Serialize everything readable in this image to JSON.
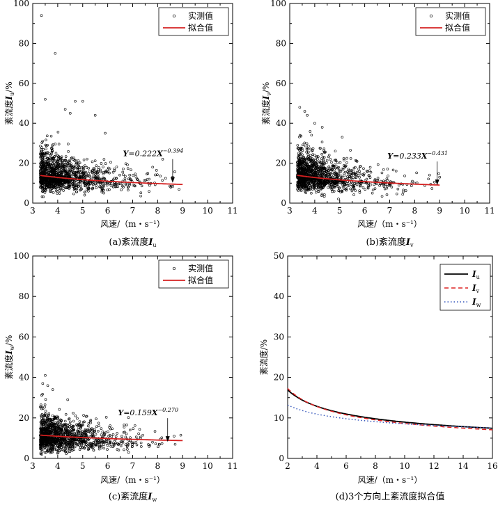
{
  "chart_data": [
    {
      "id": "a",
      "type": "scatter",
      "caption": "(a)紊流度I",
      "caption_sub": "u",
      "ylabel": "紊流度I",
      "ylabel_sub": "u",
      "ylabel_unit": "/%",
      "xlabel": "风速/（m・s⁻¹）",
      "xlim": [
        3,
        11
      ],
      "ylim": [
        0,
        100
      ],
      "xticks": [
        3,
        4,
        5,
        6,
        7,
        8,
        9,
        10,
        11
      ],
      "yticks": [
        0,
        20,
        40,
        60,
        80,
        100
      ],
      "legend": {
        "measured": "实测值",
        "fitted": "拟合值",
        "position": "top-right"
      },
      "fit": {
        "a": 0.222,
        "b": -0.394,
        "scale": 100,
        "x_range": [
          3.3,
          9.0
        ]
      },
      "equation": {
        "lhs": "Y",
        "mid": "=0.222",
        "var": "X",
        "exp": "−0.394"
      },
      "annotation_at": [
        8.6,
        10.2
      ],
      "scatter": {
        "count": 1300,
        "x_min": 3.3,
        "x_mode_decay": 0.95,
        "x_max": 9.0,
        "y_center": 14,
        "y_spread": 6.5,
        "seed": 11,
        "outliers": [
          [
            3.35,
            94
          ],
          [
            3.9,
            75
          ],
          [
            3.5,
            52
          ],
          [
            4.7,
            51
          ],
          [
            5.0,
            51
          ],
          [
            4.3,
            47
          ],
          [
            4.5,
            45
          ],
          [
            5.5,
            44
          ],
          [
            5.9,
            35
          ],
          [
            7.8,
            18
          ],
          [
            8.2,
            22
          ],
          [
            8.6,
            13
          ]
        ]
      }
    },
    {
      "id": "b",
      "type": "scatter",
      "caption": "(b)紊流度I",
      "caption_sub": "v",
      "ylabel": "紊流度I",
      "ylabel_sub": "v",
      "ylabel_unit": "/%",
      "xlabel": "风速/（m・s⁻¹）",
      "xlim": [
        3,
        11
      ],
      "ylim": [
        0,
        100
      ],
      "xticks": [
        3,
        4,
        5,
        6,
        7,
        8,
        9,
        10,
        11
      ],
      "yticks": [
        0,
        20,
        40,
        60,
        80,
        100
      ],
      "legend": {
        "measured": "实测值",
        "fitted": "拟合值",
        "position": "top-right"
      },
      "fit": {
        "a": 0.233,
        "b": -0.431,
        "scale": 100,
        "x_range": [
          3.3,
          9.0
        ]
      },
      "equation": {
        "lhs": "Y",
        "mid": "=0.233",
        "var": "X",
        "exp": "−0.431"
      },
      "annotation_at": [
        8.9,
        9.0
      ],
      "scatter": {
        "count": 1300,
        "x_min": 3.3,
        "x_mode_decay": 0.95,
        "x_max": 9.1,
        "y_center": 14,
        "y_spread": 6.5,
        "seed": 23,
        "outliers": [
          [
            3.4,
            48
          ],
          [
            3.6,
            46
          ],
          [
            3.7,
            44
          ],
          [
            4.0,
            40
          ],
          [
            4.3,
            38
          ],
          [
            5.1,
            33
          ],
          [
            8.0,
            10
          ],
          [
            9.0,
            13
          ]
        ]
      }
    },
    {
      "id": "c",
      "type": "scatter",
      "caption": "(c)紊流度I",
      "caption_sub": "w",
      "ylabel": "紊流度I",
      "ylabel_sub": "w",
      "ylabel_unit": "/%",
      "xlabel": "风速/（m・s⁻¹）",
      "xlim": [
        3,
        11
      ],
      "ylim": [
        0,
        100
      ],
      "xticks": [
        3,
        4,
        5,
        6,
        7,
        8,
        9,
        10,
        11
      ],
      "yticks": [
        0,
        20,
        40,
        60,
        80,
        100
      ],
      "legend": {
        "measured": "实测值",
        "fitted": "拟合值",
        "position": "top-right"
      },
      "fit": {
        "a": 0.159,
        "b": -0.27,
        "scale": 100,
        "x_range": [
          3.3,
          9.0
        ]
      },
      "equation": {
        "lhs": "Y",
        "mid": "=0.159",
        "var": "X",
        "exp": "−0.270"
      },
      "annotation_at": [
        8.4,
        8.2
      ],
      "scatter": {
        "count": 1300,
        "x_min": 3.3,
        "x_mode_decay": 0.95,
        "x_max": 9.0,
        "y_center": 11,
        "y_spread": 6,
        "seed": 37,
        "outliers": [
          [
            3.5,
            41
          ],
          [
            3.4,
            37
          ],
          [
            3.6,
            36
          ],
          [
            3.8,
            34
          ],
          [
            4.4,
            29
          ],
          [
            8.7,
            7
          ]
        ]
      }
    },
    {
      "id": "d",
      "type": "line",
      "caption": "(d)3个方向上紊流度拟合值",
      "ylabel": "紊流度/%",
      "xlabel": "风速/（m・s⁻¹）",
      "xlim": [
        2,
        16
      ],
      "ylim": [
        0,
        50
      ],
      "xticks": [
        2,
        4,
        6,
        8,
        10,
        12,
        14,
        16
      ],
      "yticks": [
        0,
        10,
        20,
        30,
        40,
        50
      ],
      "legend_position": "top-right",
      "series": [
        {
          "name": "I",
          "sub": "u",
          "a": 0.222,
          "b": -0.394,
          "color": "#000000",
          "dash": ""
        },
        {
          "name": "I",
          "sub": "v",
          "a": 0.233,
          "b": -0.431,
          "color": "#dd2222",
          "dash": "6,4"
        },
        {
          "name": "I",
          "sub": "w",
          "a": 0.159,
          "b": -0.27,
          "color": "#3355bb",
          "dash": "1.5,3"
        }
      ]
    }
  ]
}
